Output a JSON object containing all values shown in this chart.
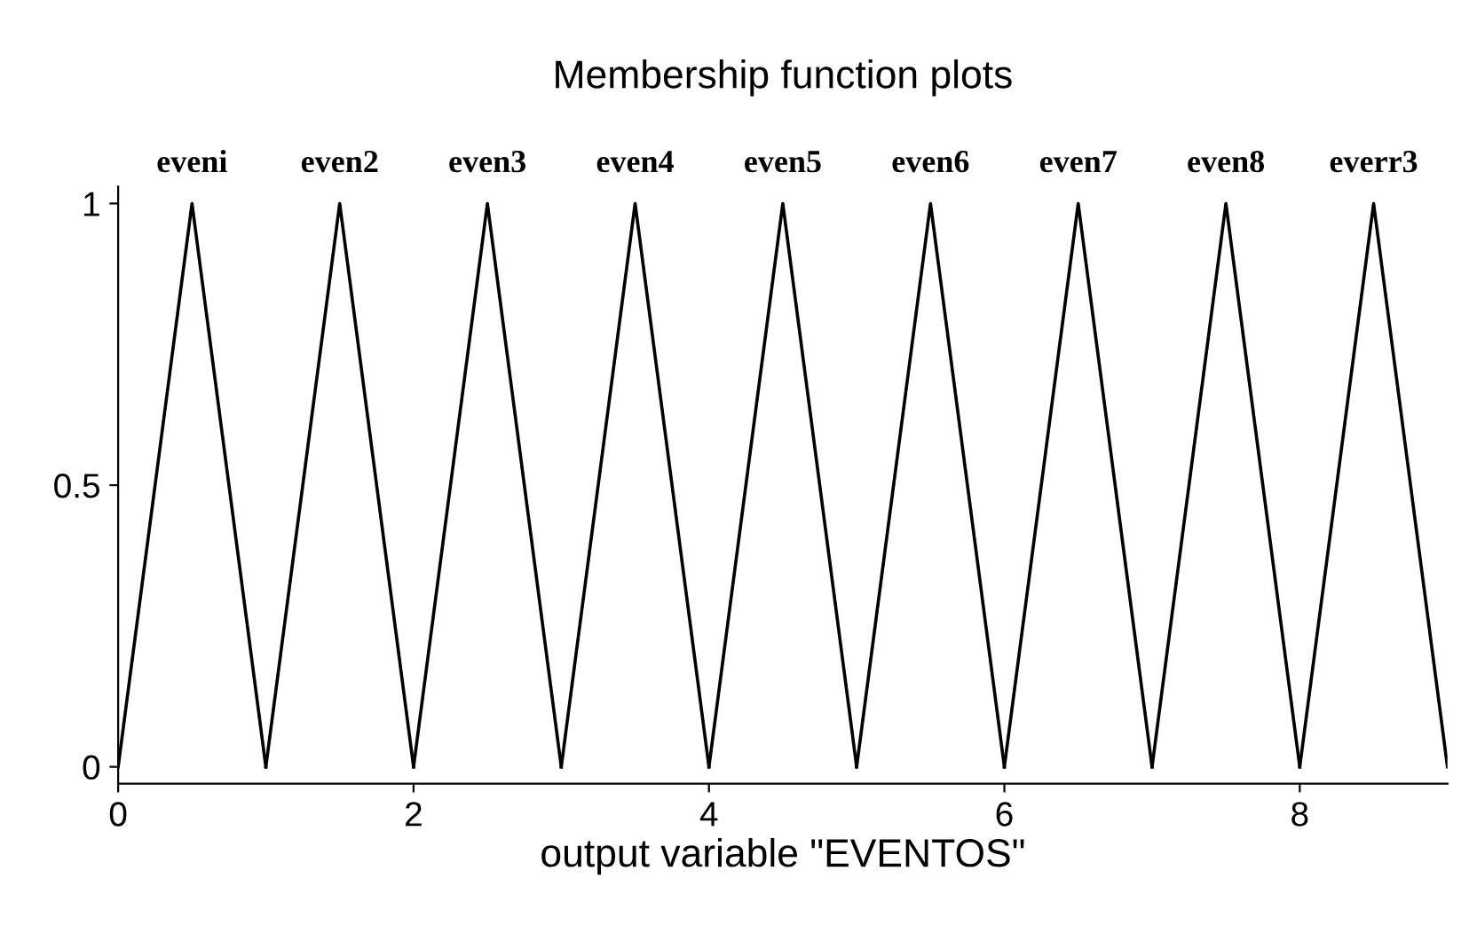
{
  "chart_data": {
    "type": "line",
    "title": "Membership function plots",
    "xlabel": "output variable \"EVENTOS\"",
    "series": [
      {
        "name": "eveni",
        "color": "#000000",
        "x": [
          0,
          0.5,
          1
        ],
        "values": [
          0,
          1,
          0
        ]
      },
      {
        "name": "even2",
        "color": "#000000",
        "x": [
          1,
          1.5,
          2
        ],
        "values": [
          0,
          1,
          0
        ]
      },
      {
        "name": "even3",
        "color": "#000000",
        "x": [
          2,
          2.5,
          3
        ],
        "values": [
          0,
          1,
          0
        ]
      },
      {
        "name": "even4",
        "color": "#000000",
        "x": [
          3,
          3.5,
          4
        ],
        "values": [
          0,
          1,
          0
        ]
      },
      {
        "name": "even5",
        "color": "#000000",
        "x": [
          4,
          4.5,
          5
        ],
        "values": [
          0,
          1,
          0
        ]
      },
      {
        "name": "even6",
        "color": "#000000",
        "x": [
          5,
          5.5,
          6
        ],
        "values": [
          0,
          1,
          0
        ]
      },
      {
        "name": "even7",
        "color": "#000000",
        "x": [
          6,
          6.5,
          7
        ],
        "values": [
          0,
          1,
          0
        ]
      },
      {
        "name": "even8",
        "color": "#000000",
        "x": [
          7,
          7.5,
          8
        ],
        "values": [
          0,
          1,
          0
        ]
      },
      {
        "name": "everr3",
        "color": "#000000",
        "x": [
          8,
          8.5,
          9
        ],
        "values": [
          0,
          1,
          0
        ]
      }
    ],
    "xlim": [
      0,
      9
    ],
    "xticks": [
      0,
      2,
      4,
      6,
      8
    ],
    "ylim": [
      -0.03,
      1.03
    ],
    "yticks": [
      0,
      0.5,
      1
    ],
    "grid": false,
    "legend": false,
    "marker": "none",
    "line_style": "solid"
  }
}
